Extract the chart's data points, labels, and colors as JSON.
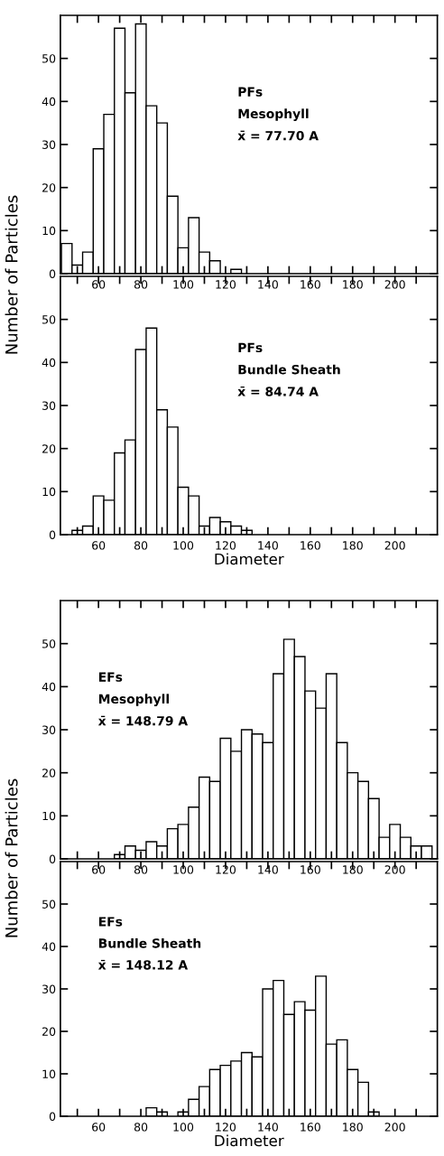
{
  "chart_data": [
    {
      "type": "histogram",
      "ylabel": "Number of Particles",
      "annotations": [
        "PFs",
        "Mesophyll",
        "x̄ = 77.70 A"
      ],
      "color": "#ffffff",
      "bins": [
        42.5,
        47.5,
        52.5,
        57.5,
        62.5,
        67.5,
        72.5,
        77.5,
        82.5,
        87.5,
        92.5,
        97.5,
        102.5,
        107.5,
        112.5,
        117.5,
        122.5,
        127.5
      ],
      "values": [
        7,
        2,
        5,
        29,
        37,
        57,
        42,
        58,
        39,
        35,
        18,
        6,
        13,
        5,
        3,
        0,
        1
      ],
      "xlim": [
        42,
        220
      ],
      "ylim": [
        0,
        60
      ],
      "yticks": [
        0,
        10,
        20,
        30,
        40,
        50
      ],
      "xticks": [
        {
          "value": 50,
          "label": null
        },
        60,
        {
          "value": 70,
          "label": null
        },
        80,
        {
          "value": 90,
          "label": null
        },
        100,
        {
          "value": 110,
          "label": null
        },
        120,
        {
          "value": 130,
          "label": null
        },
        140,
        {
          "value": 150,
          "label": null
        },
        160,
        {
          "value": 170,
          "label": null
        },
        180,
        {
          "value": 190,
          "label": null
        },
        200,
        {
          "value": 210,
          "label": null
        }
      ]
    },
    {
      "type": "histogram",
      "xlabel": "Diameter",
      "annotations": [
        "PFs",
        "Bundle Sheath",
        "x̄ = 84.74 A"
      ],
      "color": "#ffffff",
      "bins": [
        47.5,
        52.5,
        57.5,
        62.5,
        67.5,
        72.5,
        77.5,
        82.5,
        87.5,
        92.5,
        97.5,
        102.5,
        107.5,
        112.5,
        117.5,
        122.5,
        127.5,
        132.5
      ],
      "values": [
        1,
        2,
        9,
        8,
        19,
        22,
        43,
        48,
        29,
        25,
        11,
        9,
        2,
        4,
        3,
        2,
        1
      ],
      "xlim": [
        42,
        220
      ],
      "ylim": [
        0,
        60
      ],
      "yticks": [
        0,
        10,
        20,
        30,
        40,
        50
      ],
      "xticks": [
        {
          "value": 50,
          "label": null
        },
        60,
        {
          "value": 70,
          "label": null
        },
        80,
        {
          "value": 90,
          "label": null
        },
        100,
        {
          "value": 110,
          "label": null
        },
        120,
        {
          "value": 130,
          "label": null
        },
        140,
        {
          "value": 150,
          "label": null
        },
        160,
        {
          "value": 170,
          "label": null
        },
        180,
        {
          "value": 190,
          "label": null
        },
        200,
        {
          "value": 210,
          "label": null
        }
      ]
    },
    {
      "type": "histogram",
      "ylabel": "Number of Particles",
      "annotations": [
        "EFs",
        "Mesophyll",
        "x̄ = 148.79 A"
      ],
      "color": "#ffffff",
      "bins": [
        67.5,
        72.5,
        77.5,
        82.5,
        87.5,
        92.5,
        97.5,
        102.5,
        107.5,
        112.5,
        117.5,
        122.5,
        127.5,
        132.5,
        137.5,
        142.5,
        147.5,
        152.5,
        157.5,
        162.5,
        167.5,
        172.5,
        177.5,
        182.5,
        187.5,
        192.5,
        197.5,
        202.5,
        207.5,
        212.5,
        217.5
      ],
      "values": [
        1,
        3,
        2,
        4,
        3,
        7,
        8,
        12,
        19,
        18,
        28,
        25,
        30,
        29,
        27,
        43,
        51,
        47,
        39,
        35,
        43,
        27,
        20,
        18,
        14,
        5,
        8,
        5,
        3,
        3
      ],
      "xlim": [
        42,
        220
      ],
      "ylim": [
        0,
        60
      ],
      "yticks": [
        0,
        10,
        20,
        30,
        40,
        50
      ],
      "xticks": [
        {
          "value": 50,
          "label": null
        },
        60,
        {
          "value": 70,
          "label": null
        },
        80,
        {
          "value": 90,
          "label": null
        },
        100,
        {
          "value": 110,
          "label": null
        },
        120,
        {
          "value": 130,
          "label": null
        },
        140,
        {
          "value": 150,
          "label": null
        },
        160,
        {
          "value": 170,
          "label": null
        },
        180,
        {
          "value": 190,
          "label": null
        },
        200,
        {
          "value": 210,
          "label": null
        }
      ]
    },
    {
      "type": "histogram",
      "xlabel": "Diameter",
      "annotations": [
        "EFs",
        "Bundle Sheath",
        "x̄ = 148.12 A"
      ],
      "color": "#ffffff",
      "bins": [
        82.5,
        87.5,
        92.5,
        97.5,
        102.5,
        107.5,
        112.5,
        117.5,
        122.5,
        127.5,
        132.5,
        137.5,
        142.5,
        147.5,
        152.5,
        157.5,
        162.5,
        167.5,
        172.5,
        177.5,
        182.5,
        187.5,
        192.5
      ],
      "values": [
        2,
        1,
        0,
        1,
        4,
        7,
        11,
        12,
        13,
        15,
        14,
        30,
        32,
        24,
        27,
        25,
        33,
        17,
        18,
        11,
        8,
        1
      ],
      "xlim": [
        42,
        220
      ],
      "ylim": [
        0,
        60
      ],
      "yticks": [
        0,
        10,
        20,
        30,
        40,
        50
      ],
      "xticks": [
        {
          "value": 50,
          "label": null
        },
        60,
        {
          "value": 70,
          "label": null
        },
        80,
        {
          "value": 90,
          "label": null
        },
        100,
        {
          "value": 110,
          "label": null
        },
        120,
        {
          "value": 130,
          "label": null
        },
        140,
        {
          "value": 150,
          "label": null
        },
        160,
        {
          "value": 170,
          "label": null
        },
        180,
        {
          "value": 190,
          "label": null
        },
        200,
        {
          "value": 210,
          "label": null
        }
      ]
    }
  ]
}
